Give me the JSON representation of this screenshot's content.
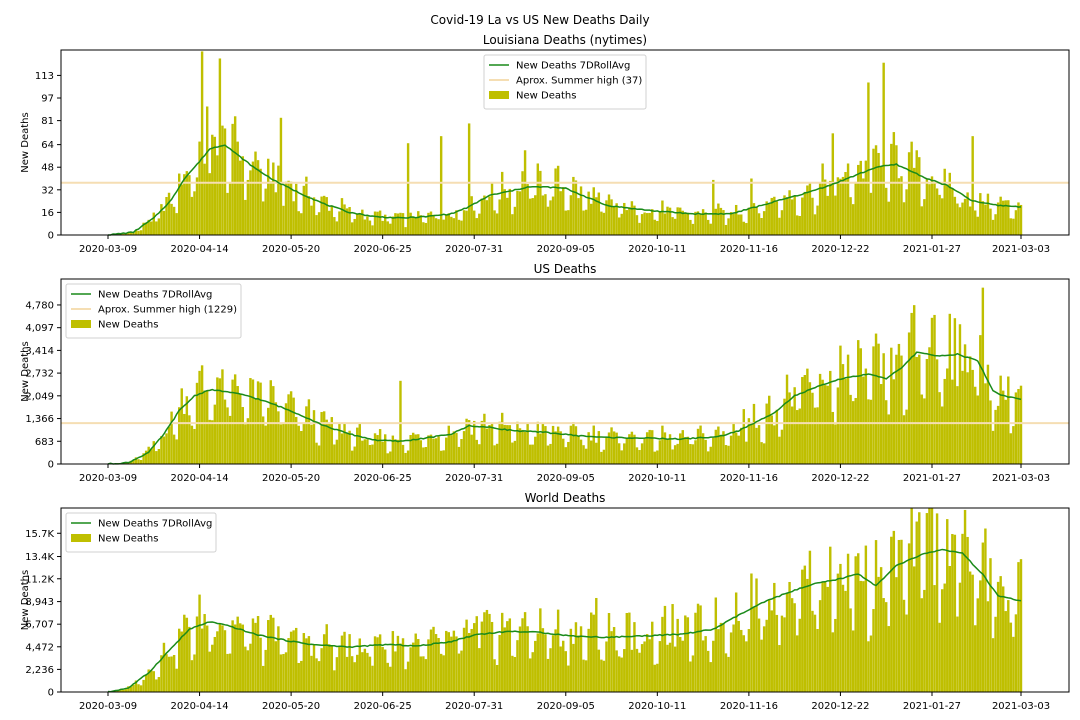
{
  "suptitle": "Covid-19 La vs US New Deaths Daily",
  "colors": {
    "bars": "#bfbf00",
    "line": "#1a8a1a",
    "summer": "#f5deb3",
    "axis": "#000000"
  },
  "chart_data": [
    {
      "type": "bar",
      "title": "Louisiana Deaths (nytimes)",
      "ylabel": "New Deaths",
      "ylim": [
        0,
        131
      ],
      "yticks": [
        0,
        16,
        32,
        48,
        64,
        81,
        97,
        113
      ],
      "ytick_labels": [
        "0",
        "16",
        "32",
        "48",
        "64",
        "81",
        "97",
        "113"
      ],
      "x_start": "2020-03-09",
      "x_end": "2021-03-03",
      "xticks": [
        "2020-03-09",
        "2020-04-14",
        "2020-05-20",
        "2020-06-25",
        "2020-07-31",
        "2020-09-05",
        "2020-10-11",
        "2020-11-16",
        "2020-12-22",
        "2021-01-27",
        "2021-03-03"
      ],
      "summer_high": 37,
      "legend": {
        "placement": "top-center",
        "entries": [
          "New Deaths 7DRollAvg",
          "Aprox. Summer high (37)",
          "New Deaths"
        ]
      },
      "rolling_avg_anchors": [
        [
          0,
          0
        ],
        [
          10,
          2
        ],
        [
          18,
          12
        ],
        [
          25,
          25
        ],
        [
          30,
          40
        ],
        [
          36,
          52
        ],
        [
          40,
          61
        ],
        [
          46,
          64
        ],
        [
          50,
          58
        ],
        [
          58,
          47
        ],
        [
          66,
          38
        ],
        [
          75,
          30
        ],
        [
          85,
          22
        ],
        [
          95,
          16
        ],
        [
          105,
          13
        ],
        [
          115,
          12
        ],
        [
          125,
          13
        ],
        [
          135,
          15
        ],
        [
          142,
          20
        ],
        [
          150,
          28
        ],
        [
          158,
          31
        ],
        [
          165,
          34
        ],
        [
          172,
          34
        ],
        [
          180,
          33
        ],
        [
          188,
          27
        ],
        [
          196,
          21
        ],
        [
          205,
          19
        ],
        [
          215,
          17
        ],
        [
          230,
          15
        ],
        [
          245,
          15
        ],
        [
          255,
          20
        ],
        [
          265,
          25
        ],
        [
          275,
          30
        ],
        [
          285,
          36
        ],
        [
          295,
          43
        ],
        [
          302,
          48
        ],
        [
          310,
          50
        ],
        [
          316,
          45
        ],
        [
          322,
          40
        ],
        [
          330,
          35
        ],
        [
          340,
          24
        ],
        [
          350,
          21
        ],
        [
          359,
          20
        ]
      ],
      "peak_days": [
        [
          37,
          130
        ],
        [
          39,
          91
        ],
        [
          41,
          71
        ],
        [
          44,
          125
        ],
        [
          59,
          53
        ],
        [
          68,
          83
        ],
        [
          118,
          65
        ],
        [
          131,
          70
        ],
        [
          142,
          79
        ],
        [
          164,
          60
        ],
        [
          238,
          39
        ],
        [
          253,
          40
        ],
        [
          285,
          72
        ],
        [
          299,
          108
        ],
        [
          305,
          122
        ],
        [
          318,
          60
        ],
        [
          340,
          70
        ]
      ]
    },
    {
      "type": "bar",
      "title": "US Deaths",
      "ylabel": "New Deaths",
      "ylim": [
        0,
        5560
      ],
      "yticks": [
        0,
        683,
        1366,
        2049,
        2732,
        3414,
        4097,
        4780
      ],
      "ytick_labels": [
        "0",
        "683",
        "1,366",
        "2,049",
        "2,732",
        "3,414",
        "4,097",
        "4,780"
      ],
      "x_start": "2020-03-09",
      "x_end": "2021-03-03",
      "xticks": [
        "2020-03-09",
        "2020-04-14",
        "2020-05-20",
        "2020-06-25",
        "2020-07-31",
        "2020-09-05",
        "2020-10-11",
        "2020-11-16",
        "2020-12-22",
        "2021-01-27",
        "2021-03-03"
      ],
      "summer_high": 1229,
      "legend": {
        "placement": "top-left",
        "entries": [
          "New Deaths 7DRollAvg",
          "Aprox. Summer high (1229)",
          "New Deaths"
        ]
      },
      "rolling_avg_anchors": [
        [
          0,
          0
        ],
        [
          8,
          40
        ],
        [
          16,
          350
        ],
        [
          22,
          900
        ],
        [
          28,
          1600
        ],
        [
          34,
          2050
        ],
        [
          40,
          2230
        ],
        [
          46,
          2180
        ],
        [
          55,
          2050
        ],
        [
          65,
          1800
        ],
        [
          75,
          1500
        ],
        [
          85,
          1150
        ],
        [
          95,
          900
        ],
        [
          105,
          720
        ],
        [
          115,
          680
        ],
        [
          125,
          780
        ],
        [
          135,
          900
        ],
        [
          142,
          1150
        ],
        [
          150,
          1100
        ],
        [
          160,
          1000
        ],
        [
          172,
          950
        ],
        [
          185,
          850
        ],
        [
          195,
          800
        ],
        [
          210,
          780
        ],
        [
          225,
          750
        ],
        [
          240,
          820
        ],
        [
          248,
          1000
        ],
        [
          256,
          1300
        ],
        [
          262,
          1550
        ],
        [
          270,
          2050
        ],
        [
          280,
          2350
        ],
        [
          290,
          2600
        ],
        [
          300,
          2700
        ],
        [
          306,
          2550
        ],
        [
          312,
          2900
        ],
        [
          318,
          3350
        ],
        [
          326,
          3250
        ],
        [
          334,
          3300
        ],
        [
          342,
          3100
        ],
        [
          348,
          2200
        ],
        [
          352,
          2050
        ],
        [
          359,
          1950
        ]
      ],
      "peak_days": [
        [
          115,
          2500
        ],
        [
          250,
          1650
        ],
        [
          325,
          4480
        ],
        [
          335,
          4200
        ],
        [
          344,
          5300
        ]
      ]
    },
    {
      "type": "bar",
      "title": "World Deaths",
      "ylabel": "New Deaths",
      "ylim": [
        0,
        18200
      ],
      "yticks": [
        0,
        2236,
        4472,
        6707,
        8943,
        11200,
        13400,
        15700
      ],
      "ytick_labels": [
        "0",
        "2,236",
        "4,472",
        "6,707",
        "8,943",
        "11.2K",
        "13.4K",
        "15.7K"
      ],
      "x_start": "2020-03-09",
      "x_end": "2021-03-03",
      "xticks": [
        "2020-03-09",
        "2020-04-14",
        "2020-05-20",
        "2020-06-25",
        "2020-07-31",
        "2020-09-05",
        "2020-10-11",
        "2020-11-16",
        "2020-12-22",
        "2021-01-27",
        "2021-03-03"
      ],
      "legend": {
        "placement": "top-left",
        "entries": [
          "New Deaths 7DRollAvg",
          "New Deaths"
        ]
      },
      "rolling_avg_anchors": [
        [
          0,
          0
        ],
        [
          8,
          400
        ],
        [
          16,
          1900
        ],
        [
          24,
          4100
        ],
        [
          32,
          6200
        ],
        [
          40,
          6950
        ],
        [
          48,
          6500
        ],
        [
          58,
          5700
        ],
        [
          70,
          5100
        ],
        [
          80,
          4700
        ],
        [
          95,
          4450
        ],
        [
          110,
          4700
        ],
        [
          122,
          4550
        ],
        [
          135,
          5000
        ],
        [
          145,
          5700
        ],
        [
          158,
          6000
        ],
        [
          170,
          5900
        ],
        [
          182,
          5550
        ],
        [
          196,
          5400
        ],
        [
          210,
          5550
        ],
        [
          225,
          5700
        ],
        [
          238,
          6200
        ],
        [
          248,
          7600
        ],
        [
          258,
          8900
        ],
        [
          268,
          9900
        ],
        [
          278,
          10700
        ],
        [
          288,
          11200
        ],
        [
          295,
          11700
        ],
        [
          302,
          10500
        ],
        [
          310,
          12500
        ],
        [
          320,
          13600
        ],
        [
          328,
          14100
        ],
        [
          336,
          13700
        ],
        [
          344,
          11600
        ],
        [
          350,
          9500
        ],
        [
          359,
          9000
        ]
      ],
      "peak_days": [
        [
          145,
          7500
        ],
        [
          192,
          9300
        ],
        [
          222,
          8700
        ],
        [
          315,
          14700
        ],
        [
          322,
          17700
        ],
        [
          330,
          17100
        ]
      ]
    }
  ]
}
